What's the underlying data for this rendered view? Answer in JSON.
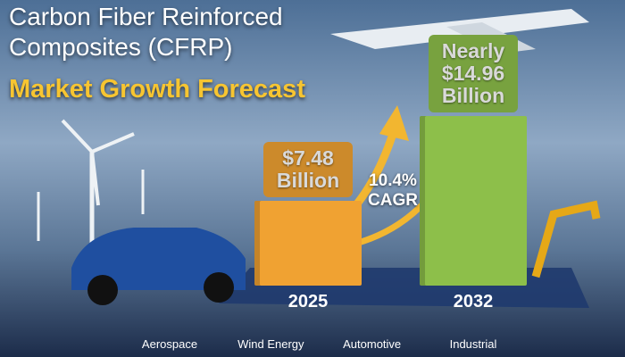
{
  "chart_data": {
    "type": "bar",
    "title": "Carbon Fiber Reinforced Composites (CFRP)",
    "subtitle": "Market Growth Forecast",
    "categories": [
      "2025",
      "2032"
    ],
    "values": [
      7.48,
      14.96
    ],
    "value_labels": [
      "$7.48 Billion",
      "Nearly $14.96 Billion"
    ],
    "colors": [
      "#f0a232",
      "#8dbf4a"
    ],
    "annotation": "10.4% CAGR"
  },
  "sectors": [
    "Aerospace",
    "Wind Energy",
    "Automotive",
    "Industrial"
  ]
}
